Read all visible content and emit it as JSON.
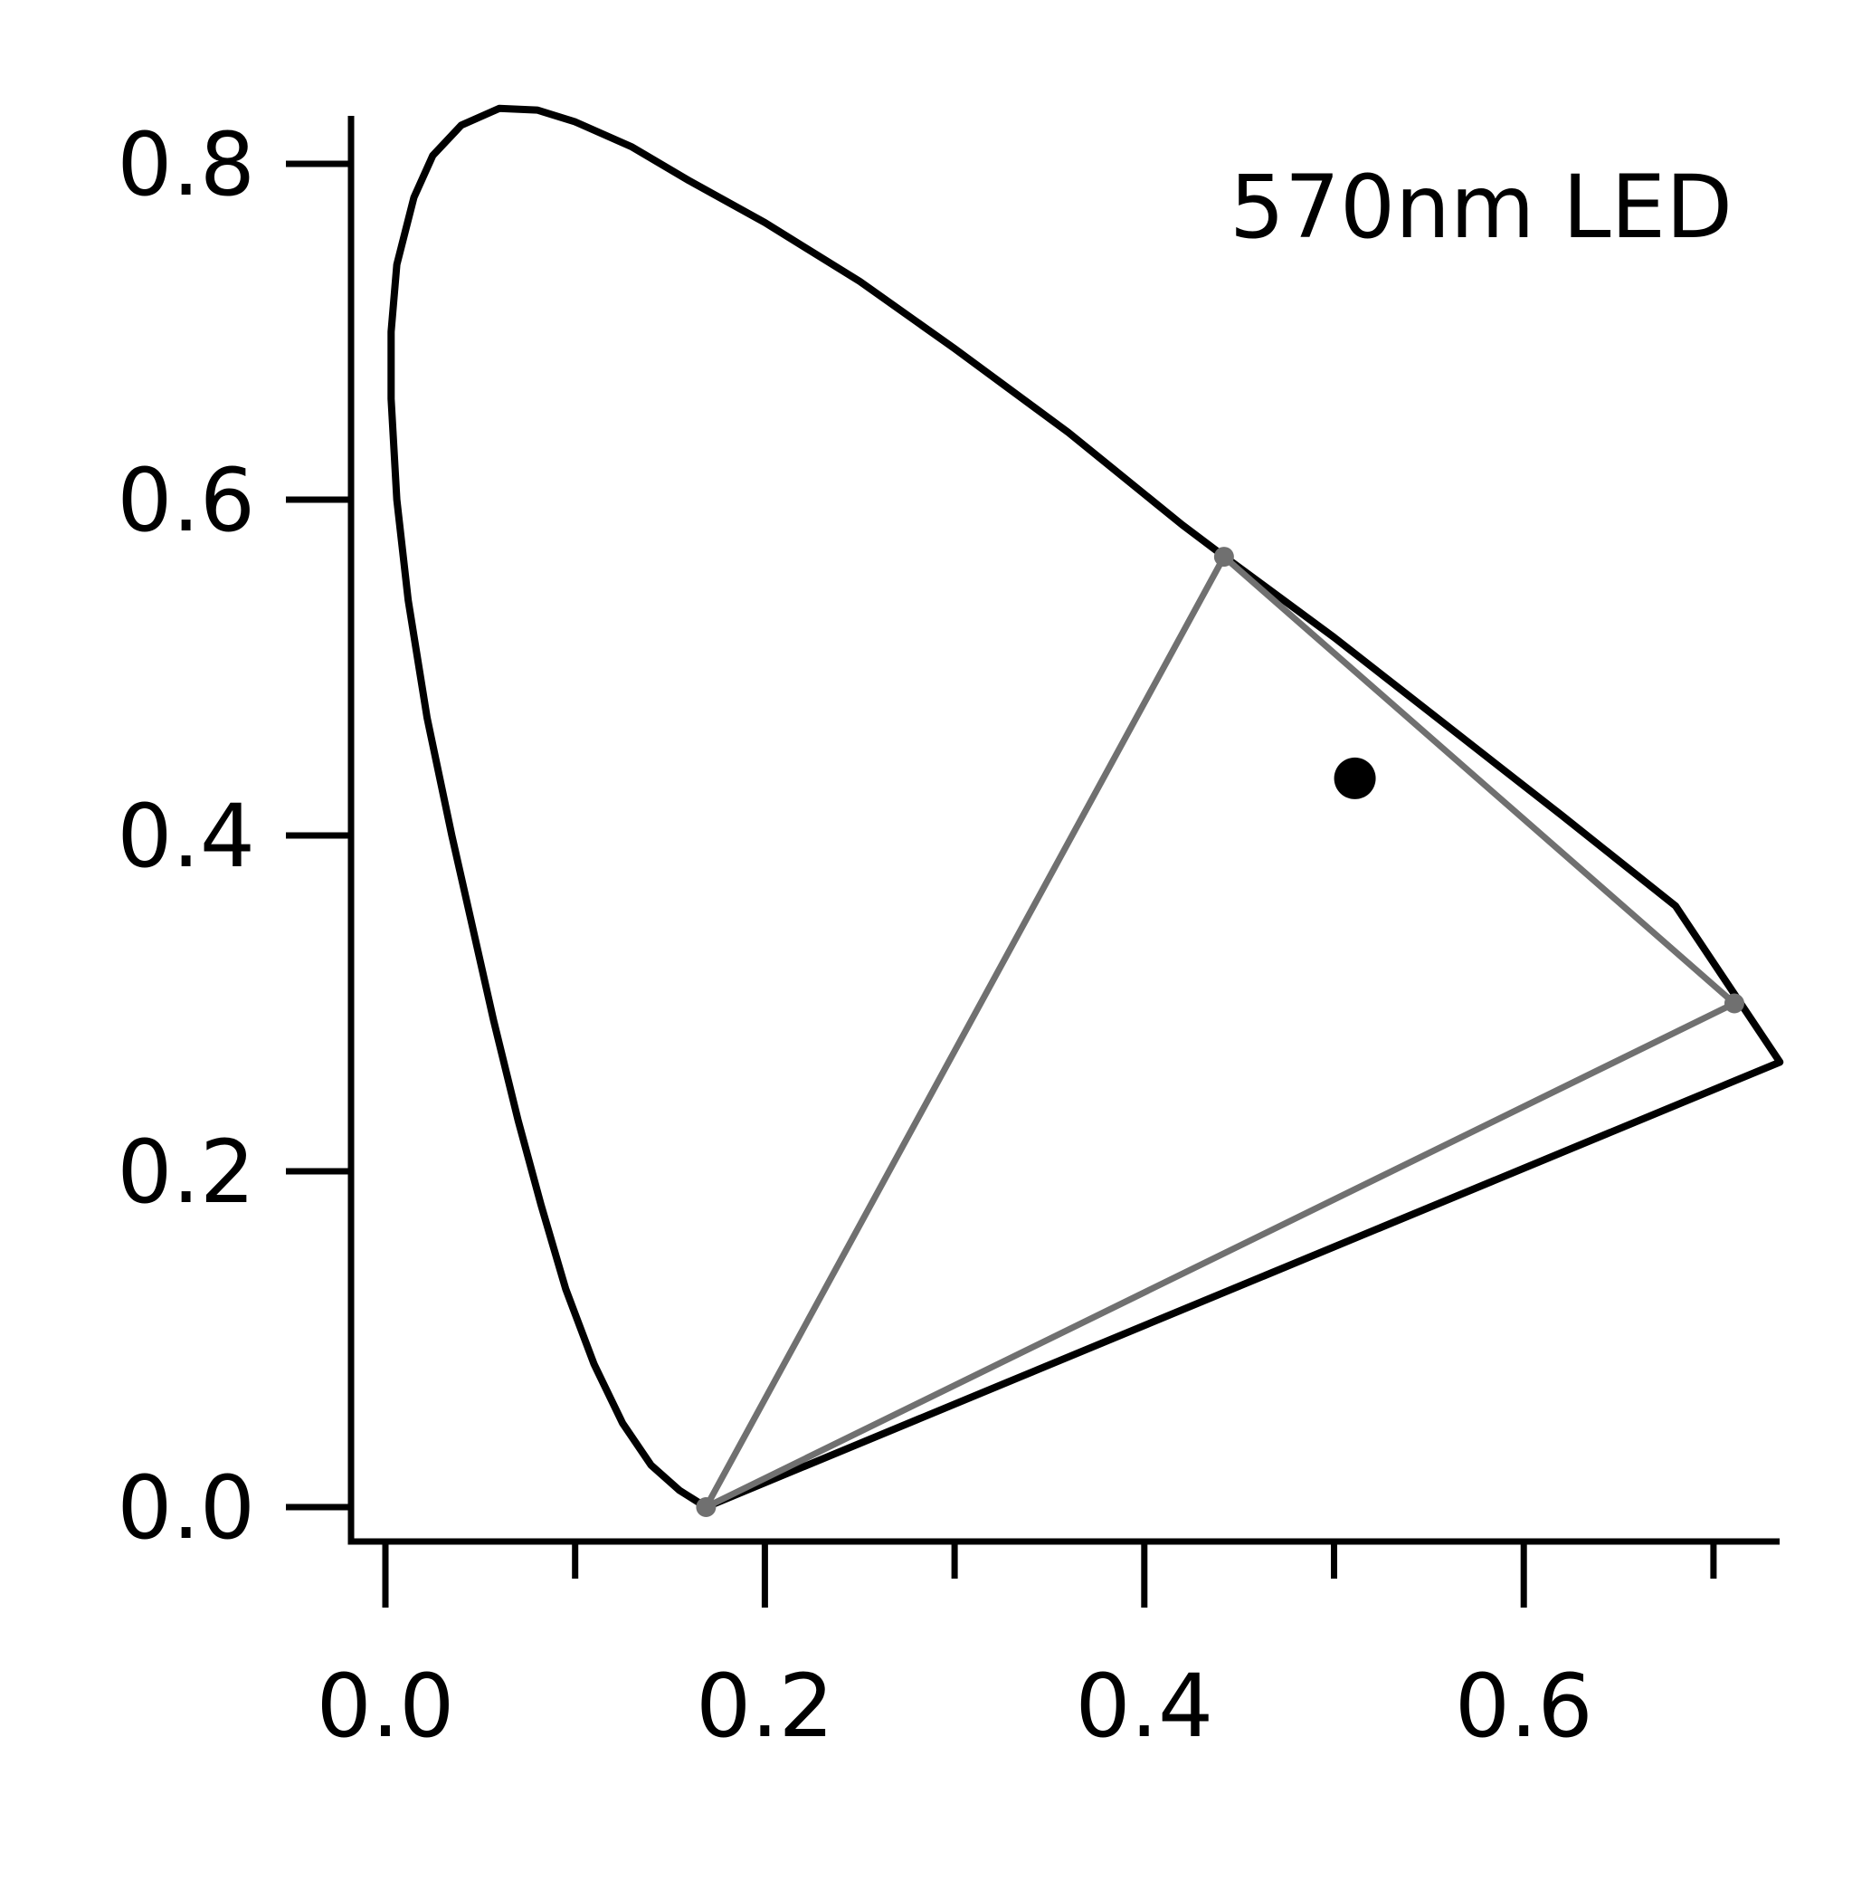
{
  "chart_data": {
    "type": "scatter",
    "annotation": "570nm LED",
    "xlim": [
      -0.02,
      0.74
    ],
    "ylim": [
      -0.02,
      0.835
    ],
    "x_ticks": [
      {
        "value": 0.0,
        "label": "0.0"
      },
      {
        "value": 0.1,
        "label": ""
      },
      {
        "value": 0.2,
        "label": "0.2"
      },
      {
        "value": 0.3,
        "label": ""
      },
      {
        "value": 0.4,
        "label": "0.4"
      },
      {
        "value": 0.5,
        "label": ""
      },
      {
        "value": 0.6,
        "label": "0.6"
      },
      {
        "value": 0.7,
        "label": ""
      }
    ],
    "y_ticks": [
      {
        "value": 0.0,
        "label": "0.0"
      },
      {
        "value": 0.2,
        "label": "0.2"
      },
      {
        "value": 0.4,
        "label": "0.4"
      },
      {
        "value": 0.6,
        "label": "0.6"
      },
      {
        "value": 0.8,
        "label": "0.8"
      }
    ],
    "grid": false,
    "spectral_locus": {
      "color": "#000000",
      "x": [
        0.169,
        0.155,
        0.14,
        0.125,
        0.11,
        0.095,
        0.082,
        0.07,
        0.057,
        0.045,
        0.035,
        0.022,
        0.012,
        0.006,
        0.003,
        0.003,
        0.006,
        0.015,
        0.025,
        0.04,
        0.06,
        0.08,
        0.1,
        0.13,
        0.16,
        0.2,
        0.25,
        0.3,
        0.36,
        0.42,
        0.44,
        0.5,
        0.56,
        0.62,
        0.68,
        0.735,
        0.169
      ],
      "y": [
        0.0,
        0.01,
        0.025,
        0.05,
        0.085,
        0.13,
        0.18,
        0.23,
        0.29,
        0.35,
        0.4,
        0.47,
        0.54,
        0.6,
        0.66,
        0.7,
        0.74,
        0.78,
        0.805,
        0.823,
        0.833,
        0.832,
        0.825,
        0.81,
        0.79,
        0.765,
        0.73,
        0.69,
        0.64,
        0.585,
        0.568,
        0.518,
        0.465,
        0.412,
        0.358,
        0.265,
        0.0
      ]
    },
    "triangle": {
      "color": "#707070",
      "x": [
        0.169,
        0.442,
        0.711,
        0.169
      ],
      "y": [
        0.0,
        0.566,
        0.3,
        0.0
      ]
    },
    "points": [
      {
        "x": 0.511,
        "y": 0.434,
        "color": "#000000"
      }
    ]
  }
}
